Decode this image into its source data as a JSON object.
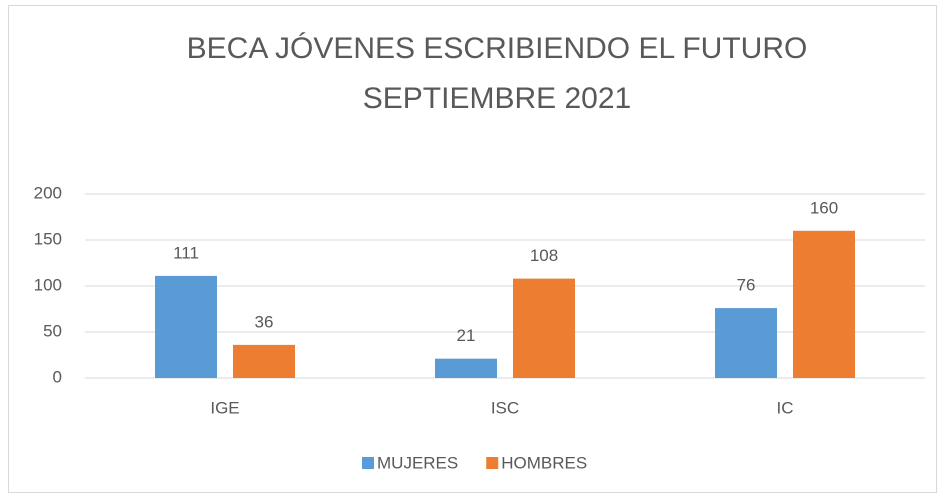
{
  "chart_data": {
    "type": "bar",
    "title": [
      "BECA JÓVENES ESCRIBIENDO EL FUTURO",
      "SEPTIEMBRE 2021"
    ],
    "categories": [
      "IGE",
      "ISC",
      "IC"
    ],
    "series": [
      {
        "name": "MUJERES",
        "color": "#5b9bd5",
        "values": [
          111,
          21,
          76
        ]
      },
      {
        "name": "HOMBRES",
        "color": "#ed7d31",
        "values": [
          36,
          108,
          160
        ]
      }
    ],
    "ylim": [
      0,
      200
    ],
    "yticks": [
      0,
      50,
      100,
      150,
      200
    ],
    "grid": true,
    "legend": "bottom"
  }
}
